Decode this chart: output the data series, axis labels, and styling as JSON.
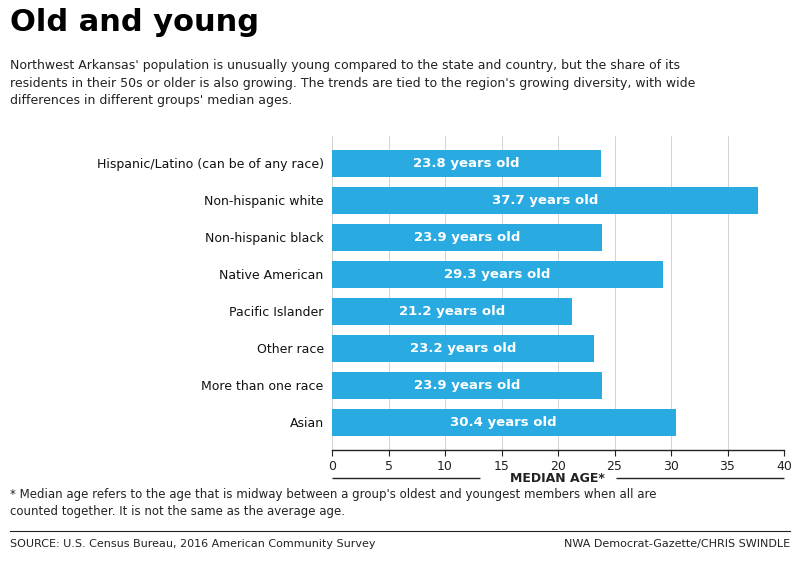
{
  "title": "Old and young",
  "subtitle": "Northwest Arkansas' population is unusually young compared to the state and country, but the share of its\nresidents in their 50s or older is also growing. The trends are tied to the region's growing diversity, with wide\ndifferences in different groups' median ages.",
  "categories": [
    "Hispanic/Latino (can be of any race)",
    "Non-hispanic white",
    "Non-hispanic black",
    "Native American",
    "Pacific Islander",
    "Other race",
    "More than one race",
    "Asian"
  ],
  "values": [
    23.8,
    37.7,
    23.9,
    29.3,
    21.2,
    23.2,
    23.9,
    30.4
  ],
  "bar_color": "#29ABE2",
  "text_color": "#FFFFFF",
  "xlabel": "MEDIAN AGE*",
  "xlim": [
    0,
    40
  ],
  "xticks": [
    0,
    5,
    10,
    15,
    20,
    25,
    30,
    35,
    40
  ],
  "footnote": "* Median age refers to the age that is midway between a group's oldest and youngest members when all are\ncounted together. It is not the same as the average age.",
  "source_left": "SOURCE: U.S. Census Bureau, 2016 American Community Survey",
  "source_right": "NWA Democrat-Gazette/CHRIS SWINDLE",
  "background_color": "#FFFFFF",
  "title_color": "#000000",
  "subtitle_color": "#222222",
  "axis_label_color": "#111111",
  "title_fontsize": 22,
  "subtitle_fontsize": 9,
  "bar_label_fontsize": 9.5,
  "category_fontsize": 9,
  "footnote_fontsize": 8.5,
  "source_fontsize": 8
}
